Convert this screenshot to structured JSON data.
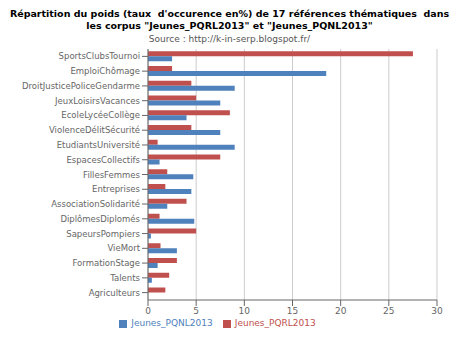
{
  "chart_data": {
    "type": "bar",
    "orientation": "horizontal",
    "title": "Répartition du poids (taux  d'occurence en%) de 17 références thématiques  dans\nles corpus \"Jeunes_PQRL2013\" et \"Jeunes_PQNL2013\"",
    "subtitle": "Source : http://k-in-serp.blogspot.fr/",
    "categories": [
      "SportsClubsTournoi",
      "EmploiChômage",
      "DroitJusticePoliceGendarme",
      "JeuxLoisirsVacances",
      "EcoleLycéeCollège",
      "ViolenceDélitSécurité",
      "EtudiantsUniversité",
      "EspacesCollectifs",
      "FillesFemmes",
      "Entreprises",
      "AssociationSolidarité",
      "DiplômesDiplomés",
      "SapeursPompiers",
      "VieMort",
      "FormationStage",
      "Talents",
      "Agriculteurs"
    ],
    "series": [
      {
        "name": "Jeunes_PQRL2013",
        "color": "#C0504D",
        "values": [
          27.5,
          2.5,
          4.5,
          5.0,
          8.5,
          4.5,
          1.0,
          7.5,
          2.0,
          1.8,
          4.0,
          1.2,
          5.0,
          1.3,
          3.0,
          2.2,
          1.8
        ]
      },
      {
        "name": "Jeunes_PQNL2013",
        "color": "#4F81BD",
        "values": [
          2.5,
          18.5,
          9.0,
          7.5,
          4.0,
          7.5,
          9.0,
          1.2,
          4.7,
          4.5,
          2.0,
          4.8,
          0.3,
          3.0,
          1.0,
          0.4,
          0.0
        ]
      }
    ],
    "xlim": [
      0,
      30
    ],
    "xticks": [
      0,
      5,
      10,
      15,
      20,
      25,
      30
    ],
    "grid": true,
    "legend": "bottom"
  }
}
